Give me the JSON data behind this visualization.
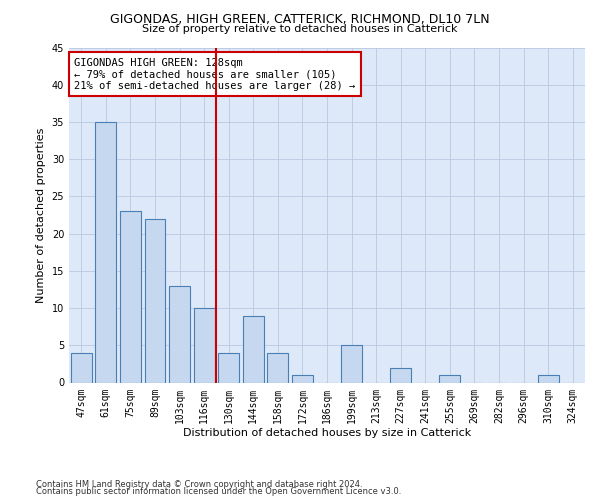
{
  "title_line1": "GIGONDAS, HIGH GREEN, CATTERICK, RICHMOND, DL10 7LN",
  "title_line2": "Size of property relative to detached houses in Catterick",
  "xlabel": "Distribution of detached houses by size in Catterick",
  "ylabel": "Number of detached properties",
  "categories": [
    "47sqm",
    "61sqm",
    "75sqm",
    "89sqm",
    "103sqm",
    "116sqm",
    "130sqm",
    "144sqm",
    "158sqm",
    "172sqm",
    "186sqm",
    "199sqm",
    "213sqm",
    "227sqm",
    "241sqm",
    "255sqm",
    "269sqm",
    "282sqm",
    "296sqm",
    "310sqm",
    "324sqm"
  ],
  "values": [
    4,
    35,
    23,
    22,
    13,
    10,
    4,
    9,
    4,
    1,
    0,
    5,
    0,
    2,
    0,
    1,
    0,
    0,
    0,
    1,
    0
  ],
  "bar_color": "#c5d8f0",
  "bar_edge_color": "#4a7fb5",
  "vline_x": 5.5,
  "vline_color": "#cc0000",
  "annotation_text": "GIGONDAS HIGH GREEN: 128sqm\n← 79% of detached houses are smaller (105)\n21% of semi-detached houses are larger (28) →",
  "annotation_box_color": "#ffffff",
  "annotation_edge_color": "#cc0000",
  "ylim": [
    0,
    45
  ],
  "yticks": [
    0,
    5,
    10,
    15,
    20,
    25,
    30,
    35,
    40,
    45
  ],
  "footer_line1": "Contains HM Land Registry data © Crown copyright and database right 2024.",
  "footer_line2": "Contains public sector information licensed under the Open Government Licence v3.0.",
  "background_color": "#dde8f8",
  "grid_color": "#b8c8e0",
  "title_fontsize": 9,
  "subtitle_fontsize": 8,
  "axis_label_fontsize": 8,
  "tick_fontsize": 7,
  "annotation_fontsize": 7.5,
  "footer_fontsize": 6
}
